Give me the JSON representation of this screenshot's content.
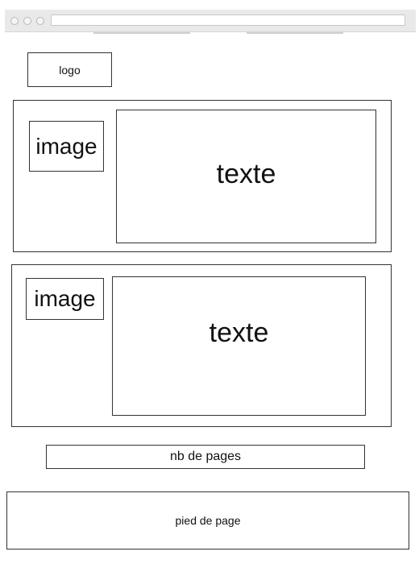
{
  "header": {
    "logo": "logo"
  },
  "cards": [
    {
      "image": "image",
      "text": "texte"
    },
    {
      "image": "image",
      "text": "texte"
    }
  ],
  "pagination": {
    "label": "nb de pages"
  },
  "footer": {
    "label": "pied de page"
  }
}
